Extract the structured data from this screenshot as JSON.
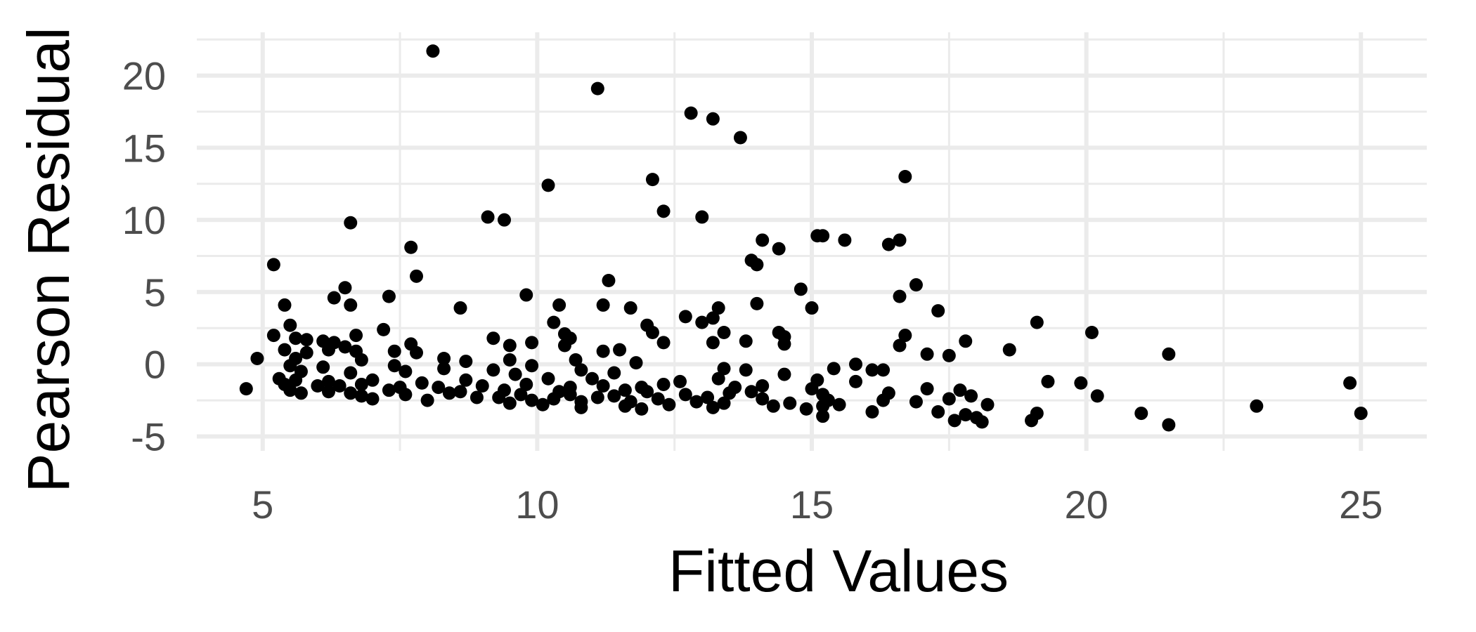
{
  "chart_data": {
    "type": "scatter",
    "title": "",
    "xlabel": "Fitted Values",
    "ylabel": "Pearson Residual",
    "xlim": [
      3.8,
      26.2
    ],
    "ylim": [
      -6.0,
      23.0
    ],
    "x_ticks": [
      5,
      10,
      15,
      20,
      25
    ],
    "x_tick_labels": [
      "5",
      "10",
      "15",
      "20",
      "25"
    ],
    "y_ticks": [
      -5,
      0,
      5,
      10,
      15,
      20
    ],
    "y_tick_labels": [
      "-5",
      "0",
      "5",
      "10",
      "15",
      "20"
    ],
    "grid": true,
    "point_color": "#000000",
    "grid_color": "#ebebeb",
    "series": [
      {
        "points": [
          [
            8.1,
            21.7
          ],
          [
            11.1,
            19.1
          ],
          [
            12.8,
            17.4
          ],
          [
            13.2,
            17.0
          ],
          [
            13.7,
            15.7
          ],
          [
            16.7,
            13.0
          ],
          [
            12.1,
            12.8
          ],
          [
            10.2,
            12.4
          ],
          [
            12.3,
            10.6
          ],
          [
            9.1,
            10.2
          ],
          [
            9.4,
            10.0
          ],
          [
            13.0,
            10.2
          ],
          [
            6.6,
            9.8
          ],
          [
            15.1,
            8.9
          ],
          [
            15.2,
            8.9
          ],
          [
            15.6,
            8.6
          ],
          [
            14.1,
            8.6
          ],
          [
            16.6,
            8.6
          ],
          [
            16.4,
            8.3
          ],
          [
            14.4,
            8.0
          ],
          [
            7.7,
            8.1
          ],
          [
            13.9,
            7.2
          ],
          [
            14.0,
            6.9
          ],
          [
            5.2,
            6.9
          ],
          [
            7.8,
            6.1
          ],
          [
            11.3,
            5.8
          ],
          [
            16.9,
            5.5
          ],
          [
            6.5,
            5.3
          ],
          [
            14.8,
            5.2
          ],
          [
            9.8,
            4.8
          ],
          [
            7.3,
            4.7
          ],
          [
            6.3,
            4.6
          ],
          [
            16.6,
            4.7
          ],
          [
            10.4,
            4.1
          ],
          [
            11.2,
            4.1
          ],
          [
            14.0,
            4.2
          ],
          [
            5.4,
            4.1
          ],
          [
            6.6,
            4.1
          ],
          [
            8.6,
            3.9
          ],
          [
            11.7,
            3.9
          ],
          [
            15.0,
            3.9
          ],
          [
            17.3,
            3.7
          ],
          [
            13.3,
            3.9
          ],
          [
            12.7,
            3.3
          ],
          [
            13.0,
            2.9
          ],
          [
            13.2,
            3.2
          ],
          [
            10.3,
            2.9
          ],
          [
            19.1,
            2.9
          ],
          [
            5.5,
            2.7
          ],
          [
            7.2,
            2.4
          ],
          [
            12.0,
            2.7
          ],
          [
            12.1,
            2.2
          ],
          [
            13.4,
            2.2
          ],
          [
            14.4,
            2.2
          ],
          [
            20.1,
            2.2
          ],
          [
            5.2,
            2.0
          ],
          [
            6.7,
            2.0
          ],
          [
            16.7,
            2.0
          ],
          [
            10.5,
            2.1
          ],
          [
            14.5,
            1.9
          ],
          [
            9.2,
            1.8
          ],
          [
            5.6,
            1.8
          ],
          [
            10.6,
            1.8
          ],
          [
            12.3,
            1.5
          ],
          [
            13.2,
            1.5
          ],
          [
            13.8,
            1.6
          ],
          [
            5.8,
            1.7
          ],
          [
            6.1,
            1.6
          ],
          [
            6.3,
            1.5
          ],
          [
            6.5,
            1.2
          ],
          [
            7.7,
            1.4
          ],
          [
            9.5,
            1.3
          ],
          [
            9.9,
            1.5
          ],
          [
            10.5,
            1.3
          ],
          [
            14.5,
            1.4
          ],
          [
            16.6,
            1.3
          ],
          [
            17.8,
            1.6
          ],
          [
            18.6,
            1.0
          ],
          [
            5.4,
            1.0
          ],
          [
            5.8,
            0.8
          ],
          [
            6.2,
            1.0
          ],
          [
            6.7,
            0.9
          ],
          [
            7.4,
            0.9
          ],
          [
            7.8,
            0.8
          ],
          [
            11.2,
            0.9
          ],
          [
            11.5,
            1.0
          ],
          [
            17.1,
            0.7
          ],
          [
            17.5,
            0.6
          ],
          [
            21.5,
            0.7
          ],
          [
            4.9,
            0.4
          ],
          [
            5.6,
            0.4
          ],
          [
            6.8,
            0.3
          ],
          [
            8.3,
            0.4
          ],
          [
            8.7,
            0.2
          ],
          [
            9.5,
            0.3
          ],
          [
            10.7,
            0.3
          ],
          [
            11.8,
            0.1
          ],
          [
            15.8,
            0.0
          ],
          [
            5.5,
            -0.1
          ],
          [
            6.1,
            -0.2
          ],
          [
            7.4,
            -0.1
          ],
          [
            8.3,
            -0.3
          ],
          [
            9.2,
            -0.4
          ],
          [
            9.9,
            -0.1
          ],
          [
            10.8,
            -0.4
          ],
          [
            13.4,
            -0.3
          ],
          [
            15.4,
            -0.3
          ],
          [
            16.1,
            -0.4
          ],
          [
            16.3,
            -0.4
          ],
          [
            13.8,
            -0.4
          ],
          [
            5.7,
            -0.5
          ],
          [
            6.6,
            -0.6
          ],
          [
            7.6,
            -0.5
          ],
          [
            9.6,
            -0.7
          ],
          [
            11.4,
            -0.6
          ],
          [
            14.5,
            -0.7
          ],
          [
            5.3,
            -1.0
          ],
          [
            5.6,
            -1.1
          ],
          [
            6.2,
            -1.2
          ],
          [
            7.0,
            -1.1
          ],
          [
            7.9,
            -1.3
          ],
          [
            8.7,
            -1.1
          ],
          [
            10.2,
            -1.0
          ],
          [
            11.0,
            -1.0
          ],
          [
            12.6,
            -1.2
          ],
          [
            13.3,
            -1.0
          ],
          [
            15.1,
            -1.1
          ],
          [
            15.8,
            -1.2
          ],
          [
            19.3,
            -1.2
          ],
          [
            19.9,
            -1.3
          ],
          [
            24.8,
            -1.3
          ],
          [
            5.4,
            -1.4
          ],
          [
            6.0,
            -1.5
          ],
          [
            6.4,
            -1.5
          ],
          [
            6.8,
            -1.4
          ],
          [
            7.5,
            -1.6
          ],
          [
            8.2,
            -1.6
          ],
          [
            9.0,
            -1.5
          ],
          [
            9.8,
            -1.4
          ],
          [
            10.6,
            -1.6
          ],
          [
            11.2,
            -1.5
          ],
          [
            11.9,
            -1.6
          ],
          [
            12.3,
            -1.4
          ],
          [
            13.6,
            -1.6
          ],
          [
            14.1,
            -1.5
          ],
          [
            15.0,
            -1.7
          ],
          [
            17.1,
            -1.7
          ],
          [
            4.7,
            -1.7
          ],
          [
            5.5,
            -1.8
          ],
          [
            6.2,
            -1.9
          ],
          [
            7.3,
            -1.8
          ],
          [
            8.6,
            -1.9
          ],
          [
            9.4,
            -1.8
          ],
          [
            10.4,
            -1.9
          ],
          [
            11.6,
            -1.8
          ],
          [
            12.0,
            -1.9
          ],
          [
            13.9,
            -1.9
          ],
          [
            17.7,
            -1.8
          ],
          [
            5.7,
            -2.0
          ],
          [
            6.6,
            -2.0
          ],
          [
            7.6,
            -2.1
          ],
          [
            8.4,
            -2.0
          ],
          [
            9.7,
            -2.1
          ],
          [
            10.6,
            -2.1
          ],
          [
            11.4,
            -2.2
          ],
          [
            12.7,
            -2.1
          ],
          [
            13.5,
            -2.0
          ],
          [
            15.2,
            -2.1
          ],
          [
            16.4,
            -2.0
          ],
          [
            17.9,
            -2.2
          ],
          [
            20.2,
            -2.2
          ],
          [
            6.8,
            -2.2
          ],
          [
            8.9,
            -2.3
          ],
          [
            9.3,
            -2.3
          ],
          [
            10.3,
            -2.4
          ],
          [
            11.1,
            -2.3
          ],
          [
            12.2,
            -2.4
          ],
          [
            13.1,
            -2.3
          ],
          [
            14.1,
            -2.4
          ],
          [
            15.3,
            -2.5
          ],
          [
            16.3,
            -2.5
          ],
          [
            17.5,
            -2.4
          ],
          [
            7.0,
            -2.4
          ],
          [
            8.0,
            -2.5
          ],
          [
            9.9,
            -2.5
          ],
          [
            10.8,
            -2.6
          ],
          [
            11.7,
            -2.6
          ],
          [
            12.9,
            -2.6
          ],
          [
            13.4,
            -2.7
          ],
          [
            14.6,
            -2.7
          ],
          [
            15.5,
            -2.8
          ],
          [
            16.9,
            -2.6
          ],
          [
            18.2,
            -2.8
          ],
          [
            9.5,
            -2.7
          ],
          [
            10.1,
            -2.8
          ],
          [
            11.6,
            -2.9
          ],
          [
            12.4,
            -2.8
          ],
          [
            14.3,
            -2.9
          ],
          [
            15.2,
            -2.9
          ],
          [
            23.1,
            -2.9
          ],
          [
            10.8,
            -3.0
          ],
          [
            11.9,
            -3.1
          ],
          [
            13.2,
            -3.0
          ],
          [
            14.9,
            -3.1
          ],
          [
            16.1,
            -3.3
          ],
          [
            17.3,
            -3.3
          ],
          [
            19.1,
            -3.4
          ],
          [
            21.0,
            -3.4
          ],
          [
            25.0,
            -3.4
          ],
          [
            17.8,
            -3.5
          ],
          [
            15.2,
            -3.6
          ],
          [
            18.0,
            -3.7
          ],
          [
            19.0,
            -3.9
          ],
          [
            18.1,
            -4.0
          ],
          [
            17.6,
            -3.9
          ],
          [
            21.5,
            -4.2
          ]
        ]
      }
    ]
  }
}
